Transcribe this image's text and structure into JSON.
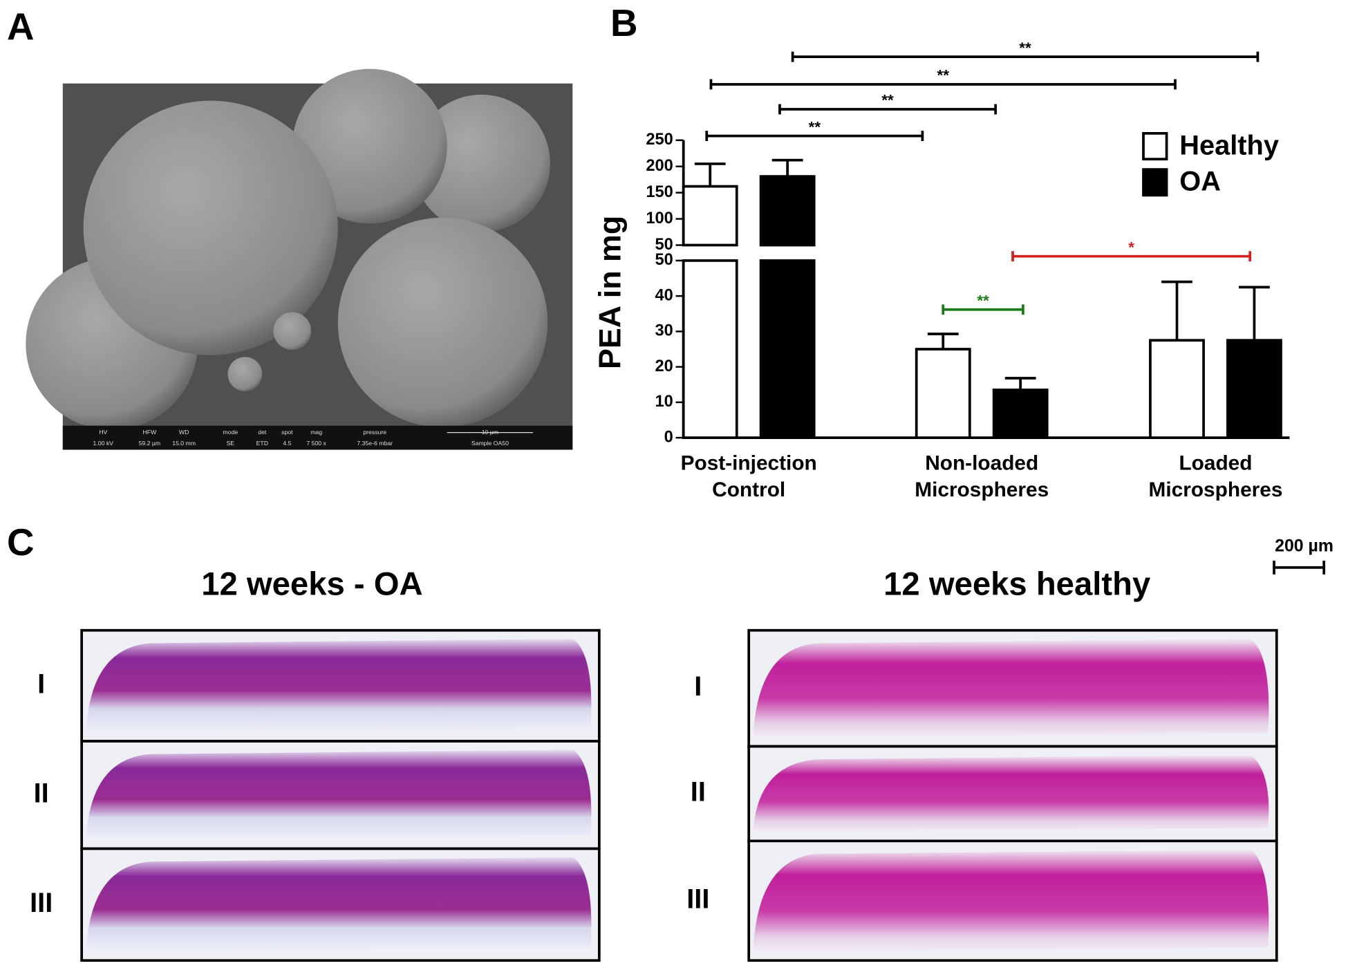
{
  "panels": {
    "a": {
      "label": "A",
      "sem_info": [
        {
          "label": "HV",
          "value": "1.00 kV"
        },
        {
          "label": "HFW",
          "value": "59.2 µm"
        },
        {
          "label": "WD",
          "value": "15.0 mm"
        },
        {
          "label": "mode",
          "value": "SE"
        },
        {
          "label": "det",
          "value": "ETD"
        },
        {
          "label": "spot",
          "value": "4.5"
        },
        {
          "label": "mag",
          "value": "7 500 x"
        },
        {
          "label": "pressure",
          "value": "7.35e-6 mbar"
        }
      ],
      "sem_scale": "10 µm",
      "sem_sample": "Sample OA50"
    },
    "b": {
      "label": "B"
    },
    "c": {
      "label": "C",
      "scale_bar": "200 µm",
      "columns": [
        {
          "title": "12 weeks - OA",
          "rows": [
            "I",
            "II",
            "III"
          ]
        },
        {
          "title": "12 weeks healthy",
          "rows": [
            "I",
            "II",
            "III"
          ]
        }
      ]
    }
  },
  "chart_data": {
    "type": "bar",
    "y_label": "PEA in mg",
    "categories": [
      "Post-injection Control",
      "Non-loaded Microspheres",
      "Loaded Microspheres"
    ],
    "series": [
      {
        "name": "Healthy",
        "color": "#ffffff",
        "values": [
          162,
          25,
          27.5
        ],
        "errors": [
          43,
          4.3,
          16.5
        ]
      },
      {
        "name": "OA",
        "color": "#000000",
        "values": [
          181,
          13.5,
          27.5
        ],
        "errors": [
          31,
          3.3,
          15
        ]
      }
    ],
    "ylim": [
      0,
      250
    ],
    "y_break": 50,
    "yticks_lower": [
      0,
      10,
      20,
      30,
      40,
      50
    ],
    "yticks_upper": [
      50,
      100,
      150,
      200,
      250
    ],
    "significance": [
      {
        "text": "**",
        "color": "#000000"
      },
      {
        "text": "**",
        "color": "#000000"
      },
      {
        "text": "**",
        "color": "#000000"
      },
      {
        "text": "**",
        "color": "#000000"
      },
      {
        "text": "**",
        "color": "#1a7a1a"
      },
      {
        "text": "*",
        "color": "#d42020"
      }
    ]
  }
}
